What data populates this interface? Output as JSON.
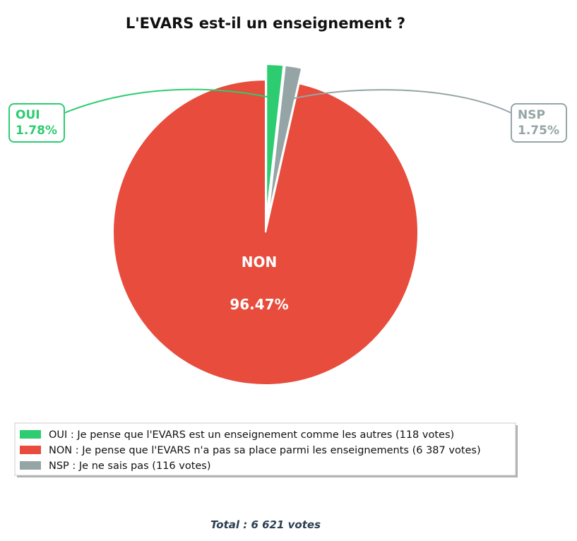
{
  "chart_data": {
    "type": "pie",
    "title": "L'EVARS est-il un enseignement ?",
    "slices": [
      {
        "short": "OUI",
        "pct_label": "1.78%",
        "value": 118,
        "color": "#2ecc71",
        "legend": "OUI : Je pense que l'EVARS est un enseignement comme les autres (118 votes)",
        "exploded": true
      },
      {
        "short": "NSP",
        "pct_label": "1.75%",
        "value": 116,
        "color": "#95a5a6",
        "legend": "NSP : Je ne sais pas (116 votes)",
        "exploded": true
      },
      {
        "short": "NON",
        "pct_label": "96.47%",
        "value": 6387,
        "color": "#e74c3c",
        "legend": "NON : Je pense que l'EVARS n'a pas sa place parmi les enseignements (6 387 votes)",
        "exploded": false
      }
    ],
    "legend_order": [
      0,
      2,
      1
    ],
    "legend_position": "bottom",
    "total_label": "Total : 6 621 votes"
  }
}
